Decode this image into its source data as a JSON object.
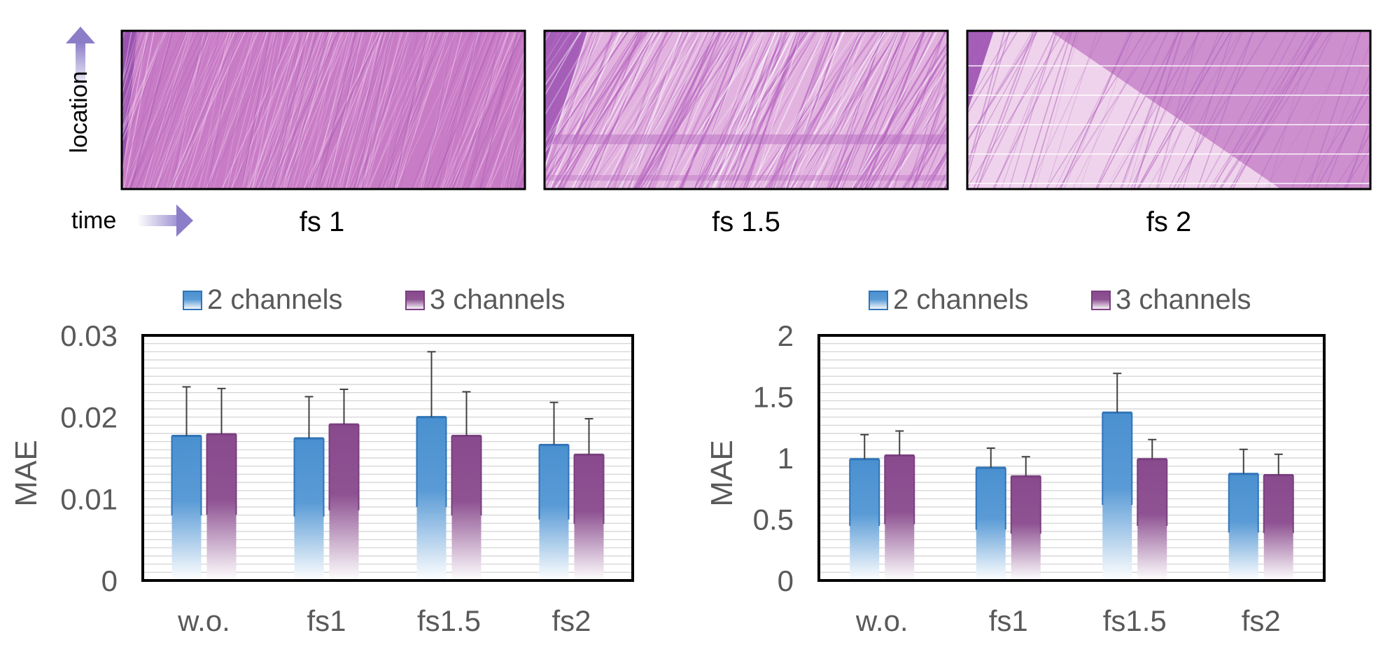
{
  "heatmap_panel": {
    "y_axis_label": "location",
    "x_axis_label": "time",
    "panels": [
      {
        "caption": "fs 1"
      },
      {
        "caption": "fs 1.5"
      },
      {
        "caption": "fs 2"
      }
    ]
  },
  "colors": {
    "blue_series": "#4a90d0",
    "blue_edge": "#2f74b8",
    "purple_series": "#8a4a8e",
    "purple_edge": "#7a3f80",
    "heatmap_base": "#c874c8",
    "arrow": "#8c7dc8"
  },
  "chart_data": [
    {
      "type": "bar",
      "categories": [
        "w.o.",
        "fs1",
        "fs1.5",
        "fs2"
      ],
      "series": [
        {
          "name": "2 channels",
          "values": [
            0.0177,
            0.0174,
            0.02,
            0.0166
          ],
          "error": [
            0.006,
            0.0051,
            0.008,
            0.0052
          ]
        },
        {
          "name": "3 channels",
          "values": [
            0.0179,
            0.0191,
            0.0177,
            0.0154
          ],
          "error": [
            0.0056,
            0.0043,
            0.0054,
            0.0044
          ]
        }
      ],
      "ylabel": "MAE",
      "ylim": [
        0,
        0.03
      ],
      "yticks": [
        "0",
        "0.01",
        "0.02",
        "0.03"
      ],
      "ytick_values": [
        0,
        0.01,
        0.02,
        0.03
      ],
      "grid": true,
      "legend_position": "top"
    },
    {
      "type": "bar",
      "categories": [
        "w.o.",
        "fs1",
        "fs1.5",
        "fs2"
      ],
      "series": [
        {
          "name": "2 channels",
          "values": [
            0.99,
            0.92,
            1.37,
            0.87
          ],
          "error": [
            0.2,
            0.16,
            0.32,
            0.2
          ]
        },
        {
          "name": "3 channels",
          "values": [
            1.02,
            0.85,
            0.99,
            0.86
          ],
          "error": [
            0.2,
            0.16,
            0.16,
            0.17
          ]
        }
      ],
      "ylabel": "MAE",
      "ylim": [
        0,
        2
      ],
      "yticks": [
        "0",
        "0.5",
        "1",
        "1.5",
        "2"
      ],
      "ytick_values": [
        0,
        0.5,
        1,
        1.5,
        2
      ],
      "grid": true,
      "legend_position": "top"
    }
  ]
}
